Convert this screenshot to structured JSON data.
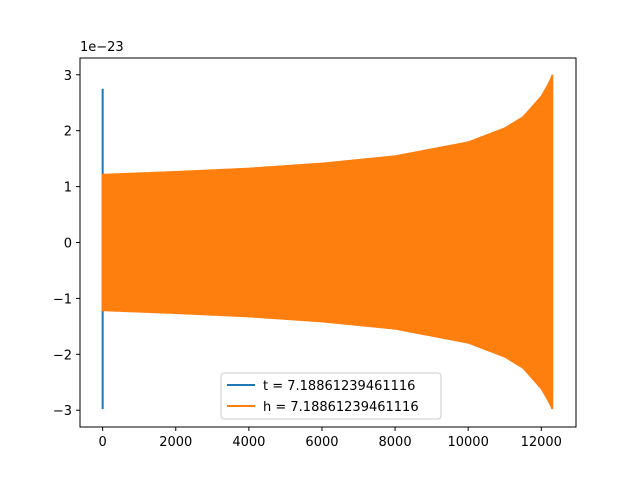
{
  "chart_data": {
    "type": "line",
    "title": "",
    "xlabel": "",
    "ylabel": "",
    "y_offset_label": "1e−23",
    "xlim": [
      -620,
      12950
    ],
    "ylim": [
      -3.3,
      3.3
    ],
    "xticks": [
      0,
      2000,
      4000,
      6000,
      8000,
      10000,
      12000
    ],
    "yticks": [
      -3,
      -2,
      -1,
      0,
      1,
      2,
      3
    ],
    "xtick_labels": [
      "0",
      "2000",
      "4000",
      "6000",
      "8000",
      "10000",
      "12000"
    ],
    "ytick_labels": [
      "−3",
      "−2",
      "−1",
      "0",
      "1",
      "2",
      "3"
    ],
    "grid": false,
    "legend_position": "lower-center",
    "series": [
      {
        "name": "t = 7.18861239461116",
        "color": "#1f77b4",
        "style": "spike",
        "x_range": [
          0,
          10
        ],
        "envelope_upper": [
          [
            0,
            2.75
          ],
          [
            10,
            0.6
          ]
        ],
        "envelope_lower": [
          [
            0,
            -2.98
          ],
          [
            10,
            -1.2
          ]
        ]
      },
      {
        "name": "h = 7.18861239461116",
        "color": "#ff7f0e",
        "style": "filled-oscillation",
        "x_range": [
          0,
          12300
        ],
        "envelope_upper": [
          [
            0,
            1.22
          ],
          [
            2000,
            1.27
          ],
          [
            4000,
            1.33
          ],
          [
            6000,
            1.42
          ],
          [
            8000,
            1.55
          ],
          [
            10000,
            1.8
          ],
          [
            11000,
            2.05
          ],
          [
            11500,
            2.25
          ],
          [
            12000,
            2.62
          ],
          [
            12200,
            2.85
          ],
          [
            12300,
            3.0
          ]
        ],
        "envelope_lower": [
          [
            0,
            -1.22
          ],
          [
            2000,
            -1.27
          ],
          [
            4000,
            -1.33
          ],
          [
            6000,
            -1.42
          ],
          [
            8000,
            -1.55
          ],
          [
            10000,
            -1.8
          ],
          [
            11000,
            -2.05
          ],
          [
            11500,
            -2.25
          ],
          [
            12000,
            -2.62
          ],
          [
            12200,
            -2.85
          ],
          [
            12300,
            -2.98
          ]
        ]
      }
    ]
  }
}
